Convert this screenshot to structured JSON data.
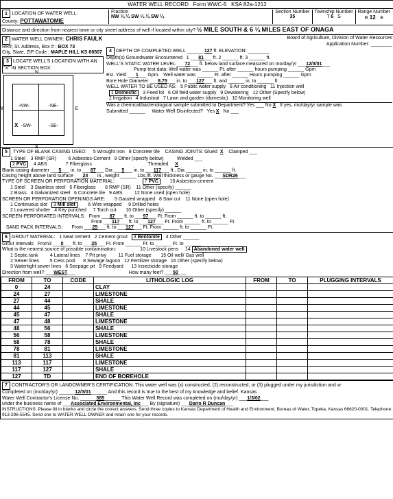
{
  "form": {
    "title": "WATER WELL RECORD",
    "no": "Form WWC-5",
    "ksa": "KSA 82a-1212"
  },
  "loc": {
    "county": "POTTAWATOMIE",
    "fraction": "NW ¼ ¼  SW ¼ ¼  SW ¼",
    "section": "35",
    "township": "6",
    "townshipDir": "S",
    "range": "12",
    "rangeDir": "E",
    "desc": "½ MILE SOUTH & 6 ¼ MILES EAST OF ONAGA"
  },
  "owner": {
    "name": "CHRIS FAULK",
    "addr": "BOX 73",
    "city": "MAPLE HILL KS  66507"
  },
  "depth": {
    "completed": "127",
    "gw": "81",
    "static": "72",
    "date": "12/3/01",
    "estYield": "1",
    "boreDia": "8.75",
    "boreTo": "127"
  },
  "use": {
    "selected": "Domestic"
  },
  "chem": {
    "submitted": "No",
    "x": "X",
    "disinfected": "Yes",
    "dx": "X"
  },
  "casing": {
    "type": "PVC",
    "dia": "5",
    "to": "87",
    "dia2": "5",
    "to2": "117",
    "height": "24",
    "gauge": "SDR26",
    "jointsGlued": "X",
    "threaded": "X"
  },
  "screen": {
    "type": "PVC",
    "opening": "Mill slot",
    "from1": "87",
    "to1": "97",
    "from2": "117",
    "to2": "127",
    "sand_from": "25",
    "sand_to": "127"
  },
  "grout": {
    "mat": "Bentonite",
    "from": "0",
    "to": "25"
  },
  "contam": {
    "dir": "WEST",
    "feet": "50",
    "nearest": "Abandoned water well"
  },
  "log": [
    {
      "f": "0",
      "t": "24",
      "l": "CLAY"
    },
    {
      "f": "24",
      "t": "27",
      "l": "LIMESTONE"
    },
    {
      "f": "27",
      "t": "44",
      "l": "SHALE"
    },
    {
      "f": "44",
      "t": "45",
      "l": "LIMESTONE"
    },
    {
      "f": "45",
      "t": "47",
      "l": "SHALE"
    },
    {
      "f": "47",
      "t": "48",
      "l": "LIMESTONE"
    },
    {
      "f": "48",
      "t": "56",
      "l": "SHALE"
    },
    {
      "f": "56",
      "t": "58",
      "l": "LIMESTONE"
    },
    {
      "f": "58",
      "t": "78",
      "l": "SHALE"
    },
    {
      "f": "78",
      "t": "81",
      "l": "LIMESTONE"
    },
    {
      "f": "81",
      "t": "113",
      "l": "SHALE"
    },
    {
      "f": "113",
      "t": "117",
      "l": "LIMESTONE"
    },
    {
      "f": "117",
      "t": "127",
      "l": "SHALE"
    },
    {
      "f": "127",
      "t": "TD",
      "l": "END OF BOREHOLE"
    }
  ],
  "cert": {
    "date": "12/3/01",
    "license": "585",
    "recDate": "1/3/02",
    "business": "Associated Environmental, Inc",
    "sig": "Darin R Duncan",
    "instr": "INSTRUCTIONS: Please fill in blanks and circle the correct answers. Send three copies to Kansas Department of Health and Environment, Bureau of Water, Topeka, Kansas 66620-0001. Telephone: 913-296-5545. Send one to WATER WELL OWNER and retain one for your records."
  }
}
